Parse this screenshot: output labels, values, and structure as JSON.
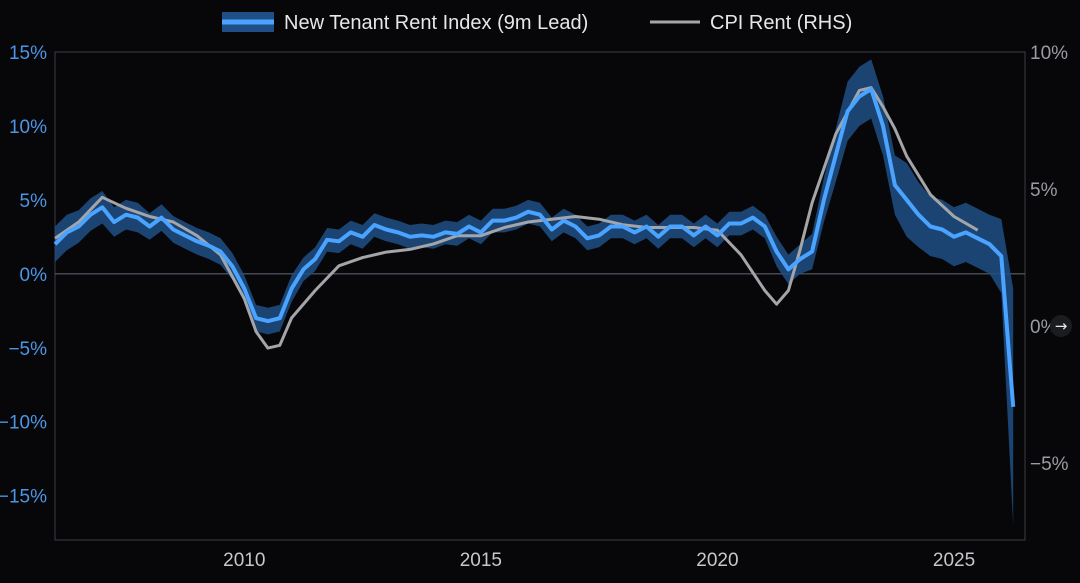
{
  "chart_data": {
    "type": "line",
    "legend": {
      "placement": "top-center",
      "items": [
        {
          "label": "New Tenant Rent Index (9m Lead)",
          "color": "#4aa3ff"
        },
        {
          "label": "CPI Rent (RHS)",
          "color": "#9b9b9b"
        }
      ]
    },
    "x_ticks": [
      "2010",
      "2015",
      "2020",
      "2025"
    ],
    "left_ticks": [
      "15%",
      "10%",
      "5%",
      "0%",
      "−5%",
      "−10%",
      "−15%"
    ],
    "right_ticks": [
      "10%",
      "5%",
      "0%",
      "−5%"
    ],
    "xlim": [
      2006.0,
      2026.5
    ],
    "ylim_left": [
      -18,
      15
    ],
    "ylim_right": [
      -7.8,
      10
    ],
    "grid": "zero-line only",
    "colors": {
      "background": "#070709",
      "series1_line": "#4aa3ff",
      "series1_band": "#1f4f86",
      "series2_line": "#a4a5a8",
      "axis": "#3a3e47"
    },
    "series": [
      {
        "name": "New Tenant Rent Index (9m Lead)",
        "axis": "left",
        "x": [
          2006.0,
          2006.25,
          2006.5,
          2006.75,
          2007.0,
          2007.25,
          2007.5,
          2007.75,
          2008.0,
          2008.25,
          2008.5,
          2008.75,
          2009.0,
          2009.25,
          2009.5,
          2009.75,
          2010.0,
          2010.25,
          2010.5,
          2010.75,
          2011.0,
          2011.25,
          2011.5,
          2011.75,
          2012.0,
          2012.25,
          2012.5,
          2012.75,
          2013.0,
          2013.25,
          2013.5,
          2013.75,
          2014.0,
          2014.25,
          2014.5,
          2014.75,
          2015.0,
          2015.25,
          2015.5,
          2015.75,
          2016.0,
          2016.25,
          2016.5,
          2016.75,
          2017.0,
          2017.25,
          2017.5,
          2017.75,
          2018.0,
          2018.25,
          2018.5,
          2018.75,
          2019.0,
          2019.25,
          2019.5,
          2019.75,
          2020.0,
          2020.25,
          2020.5,
          2020.75,
          2021.0,
          2021.25,
          2021.5,
          2021.75,
          2022.0,
          2022.25,
          2022.5,
          2022.75,
          2023.0,
          2023.25,
          2023.5,
          2023.75,
          2024.0,
          2024.25,
          2024.5,
          2024.75,
          2025.0,
          2025.25,
          2025.5,
          2025.75,
          2026.0,
          2026.25
        ],
        "values": [
          2.0,
          2.8,
          3.2,
          4.0,
          4.5,
          3.5,
          4.0,
          3.8,
          3.2,
          3.8,
          3.0,
          2.6,
          2.2,
          1.9,
          1.5,
          0.5,
          -1.0,
          -3.0,
          -3.2,
          -3.0,
          -1.0,
          0.3,
          1.0,
          2.3,
          2.2,
          2.8,
          2.5,
          3.3,
          3.0,
          2.8,
          2.5,
          2.6,
          2.5,
          2.8,
          2.7,
          3.2,
          2.8,
          3.6,
          3.6,
          3.8,
          4.2,
          4.0,
          3.0,
          3.6,
          3.2,
          2.4,
          2.6,
          3.2,
          3.2,
          2.8,
          3.2,
          2.5,
          3.2,
          3.2,
          2.6,
          3.2,
          2.6,
          3.4,
          3.4,
          3.8,
          3.2,
          1.5,
          0.3,
          1.0,
          1.5,
          5.0,
          8.0,
          11.0,
          12.0,
          12.5,
          10.0,
          6.0,
          5.0,
          4.0,
          3.2,
          3.0,
          2.5,
          2.8,
          2.4,
          2.0,
          1.2,
          -9.0
        ],
        "band_width": [
          1.2,
          1.2,
          1.1,
          1.1,
          1.1,
          1.0,
          1.0,
          1.0,
          0.9,
          0.9,
          0.9,
          0.9,
          0.9,
          0.9,
          0.9,
          0.9,
          0.9,
          0.9,
          0.9,
          0.9,
          0.9,
          0.8,
          0.8,
          0.8,
          0.8,
          0.8,
          0.8,
          0.8,
          0.8,
          0.8,
          0.8,
          0.8,
          0.8,
          0.8,
          0.8,
          0.8,
          0.8,
          0.8,
          0.8,
          0.8,
          0.8,
          0.8,
          0.8,
          0.8,
          0.8,
          0.8,
          0.8,
          0.8,
          0.8,
          0.8,
          0.8,
          0.8,
          0.8,
          0.8,
          0.8,
          0.8,
          0.8,
          0.8,
          0.8,
          0.8,
          0.8,
          1.0,
          1.0,
          1.0,
          1.2,
          1.5,
          1.8,
          2.0,
          2.0,
          2.0,
          2.0,
          2.0,
          2.5,
          2.2,
          2.0,
          2.0,
          2.0,
          2.0,
          2.0,
          2.0,
          2.5,
          8.0
        ]
      },
      {
        "name": "CPI Rent (RHS)",
        "axis": "right",
        "x": [
          2006.0,
          2006.5,
          2007.0,
          2007.5,
          2008.0,
          2008.5,
          2009.0,
          2009.5,
          2010.0,
          2010.25,
          2010.5,
          2010.75,
          2011.0,
          2011.5,
          2012.0,
          2012.5,
          2013.0,
          2013.5,
          2014.0,
          2014.5,
          2015.0,
          2015.5,
          2016.0,
          2016.5,
          2017.0,
          2017.5,
          2018.0,
          2018.5,
          2019.0,
          2019.5,
          2020.0,
          2020.5,
          2021.0,
          2021.25,
          2021.5,
          2021.75,
          2022.0,
          2022.5,
          2023.0,
          2023.25,
          2023.5,
          2023.75,
          2024.0,
          2024.5,
          2025.0,
          2025.5
        ],
        "values": [
          3.2,
          3.8,
          4.7,
          4.3,
          4.0,
          3.8,
          3.3,
          2.6,
          1.0,
          -0.2,
          -0.8,
          -0.7,
          0.3,
          1.3,
          2.2,
          2.5,
          2.7,
          2.8,
          3.0,
          3.3,
          3.3,
          3.6,
          3.8,
          3.9,
          4.0,
          3.9,
          3.7,
          3.6,
          3.6,
          3.6,
          3.5,
          2.6,
          1.3,
          0.8,
          1.3,
          2.8,
          4.5,
          7.0,
          8.6,
          8.7,
          8.0,
          7.2,
          6.2,
          4.8,
          4.0,
          3.5
        ]
      }
    ]
  }
}
